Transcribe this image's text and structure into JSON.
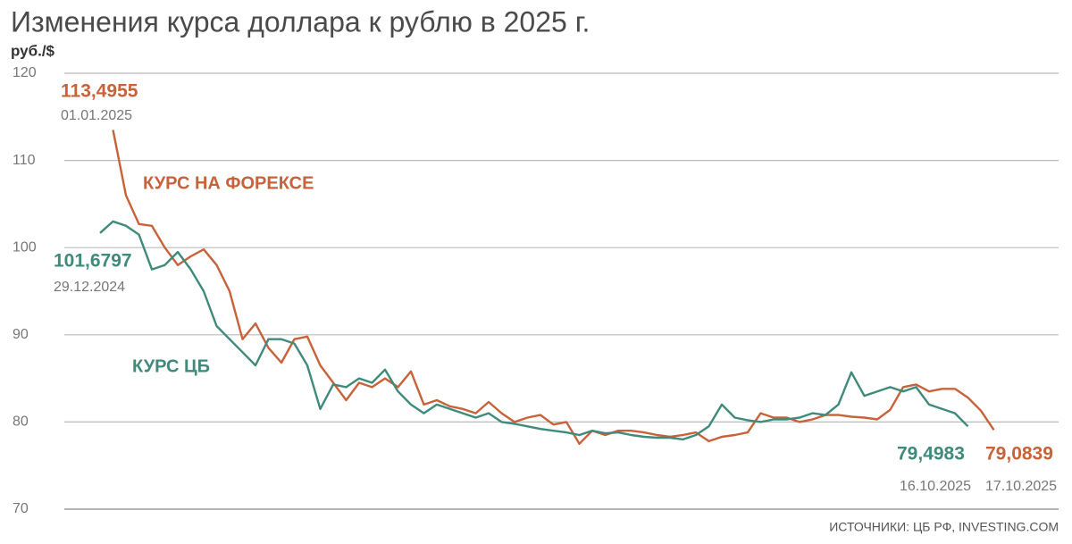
{
  "chart_data": {
    "type": "line",
    "title": "Изменения курса доллара к рублю в 2025 г.",
    "y_label": "руб./$",
    "source": "ИСТОЧНИКИ: ЦБ РФ, INVESTING.COM",
    "ylim": [
      70,
      120
    ],
    "yticks": [
      70,
      80,
      90,
      100,
      110,
      120
    ],
    "grid": true,
    "series": [
      {
        "name": "КУРС НА ФОРЕКСЕ",
        "color": "#c8623a",
        "values": [
          null,
          113.4955,
          106,
          102.7,
          102.5,
          100,
          98,
          99,
          99.8,
          98,
          95,
          89.5,
          91.3,
          88.5,
          86.8,
          89.5,
          89.8,
          86.5,
          84.5,
          82.5,
          84.5,
          84,
          85,
          84,
          85.8,
          82,
          82.5,
          81.8,
          81.5,
          81,
          82.3,
          81,
          80,
          80.5,
          80.8,
          79.7,
          80,
          77.5,
          79,
          78.5,
          79,
          79,
          78.8,
          78.5,
          78.3,
          78.5,
          78.8,
          77.8,
          78.3,
          78.5,
          78.8,
          81,
          80.5,
          80.5,
          80,
          80.3,
          80.8,
          80.8,
          80.6,
          80.5,
          80.3,
          81.4,
          84,
          84.3,
          83.5,
          83.8,
          83.8,
          82.8,
          81.3,
          79.0839
        ]
      },
      {
        "name": "КУРС ЦБ",
        "color": "#3f8a7a",
        "values": [
          101.6797,
          103,
          102.5,
          101.5,
          97.5,
          98,
          99.5,
          97.5,
          95,
          91,
          89.5,
          88,
          86.5,
          89.5,
          89.5,
          89,
          86.5,
          81.5,
          84.3,
          84,
          85,
          84.5,
          86,
          83.5,
          82,
          81,
          82,
          81.5,
          81,
          80.5,
          81,
          80,
          79.8,
          79.5,
          79.2,
          79,
          78.8,
          78.5,
          79,
          78.7,
          78.8,
          78.5,
          78.3,
          78.2,
          78.2,
          78,
          78.5,
          79.5,
          82,
          80.5,
          80.2,
          80,
          80.3,
          80.3,
          80.5,
          81,
          80.8,
          82,
          85.7,
          83,
          83.5,
          84,
          83.5,
          84,
          82,
          81.5,
          81,
          79.4983,
          null,
          null
        ]
      }
    ],
    "annotations": [
      {
        "label": "113,4955",
        "date": "01.01.2025"
      },
      {
        "label": "101,6797",
        "date": "29.12.2024"
      },
      {
        "label": "79,4983",
        "date": "16.10.2025"
      },
      {
        "label": "79,0839",
        "date": "17.10.2025"
      }
    ]
  }
}
